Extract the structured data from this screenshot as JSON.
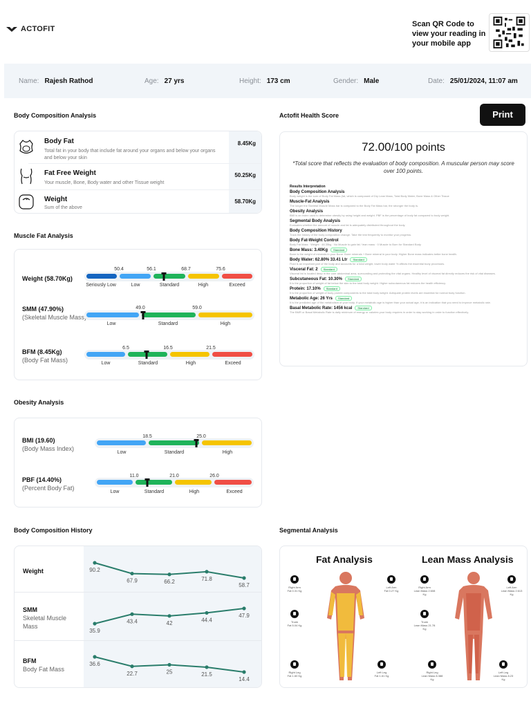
{
  "header": {
    "logo_text": "ACTOFIT",
    "qr_text": "Scan QR Code to view your reading in your mobile app"
  },
  "info": {
    "name_label": "Name:",
    "name": "Rajesh Rathod",
    "age_label": "Age:",
    "age": "27 yrs",
    "height_label": "Height:",
    "height": "173 cm",
    "gender_label": "Gender:",
    "gender": "Male",
    "date_label": "Date:",
    "date": "25/01/2024, 11:07 am"
  },
  "body_composition": {
    "title": "Body Composition Analysis",
    "rows": [
      {
        "name": "Body Fat",
        "desc": "Total fat in your body that include fat around your organs and below your organs and below your skin",
        "value": "8.45Kg",
        "icon": "body-fat-icon"
      },
      {
        "name": "Fat Free Weight",
        "desc": "Your muscle, Bone, Body water and other Tissue weight",
        "value": "50.25Kg",
        "icon": "torso-icon"
      },
      {
        "name": "Weight",
        "desc": "Sum of the above",
        "value": "58.70Kg",
        "icon": "scale-icon"
      }
    ]
  },
  "muscle_fat": {
    "title": "Muscle Fat Analysis",
    "weight": {
      "label": "Weight (58.70Kg)",
      "ticks": [
        "50.4",
        "56.1",
        "68.7",
        "75.6"
      ],
      "cats": [
        "Seriously Low",
        "Low",
        "Standard",
        "High",
        "Exceed"
      ],
      "value": 58.7
    },
    "smm": {
      "label": "SMM (47.90%)",
      "sub": "(Skeletal Muscle Mass)",
      "ticks": [
        "49.0",
        "59.0"
      ],
      "cats": [
        "Low",
        "Standard",
        "High"
      ],
      "value": 47.9
    },
    "bfm": {
      "label": "BFM (8.45Kg)",
      "sub": "(Body Fat Mass)",
      "ticks": [
        "6.5",
        "16.5",
        "21.5"
      ],
      "cats": [
        "Low",
        "Standard",
        "High",
        "Exceed"
      ],
      "value": 8.45
    }
  },
  "obesity": {
    "title": "Obesity Analysis",
    "bmi": {
      "label": "BMI (19.60)",
      "sub": "(Body Mass Index)",
      "ticks": [
        "18.5",
        "25.0"
      ],
      "cats": [
        "Low",
        "Standard",
        "High"
      ],
      "value": 19.6
    },
    "pbf": {
      "label": "PBF (14.40%)",
      "sub": "(Percent Body Fat)",
      "ticks": [
        "11.0",
        "21.0",
        "26.0"
      ],
      "cats": [
        "Low",
        "Standard",
        "High",
        "Exceed"
      ],
      "value": 14.4
    }
  },
  "health_score": {
    "title": "Actofit Health Score",
    "print_label": "Print",
    "score": "72.00",
    "score_suffix": "/100 points",
    "note": "*Total score that reflects the evaluation of body composition. A muscular person may score over 100 points.",
    "interp_title": "Results Interpretation",
    "items": [
      {
        "h": "Body Composition Analysis",
        "p": "Body weight is the sum of Body Fat Mass (fat, which is composed of Dry Lean Mass, Total Body Water, Bone Mass & Other Tissue"
      },
      {
        "h": "Muscle-Fat Analysis",
        "p": "The longer the Skeletal Muscle Mass bar is compared to the Body Fat Mass bar, the stronger the body is."
      },
      {
        "h": "Obesity Analysis",
        "p": "BMI is an index used to determine obesity by using height and weight. PBF is the percentage of body fat compared to body weight."
      },
      {
        "h": "Segmental Body Analysis",
        "p": "Evaluates whether the amount of muscle and fat is adequately distributed throughout the body."
      },
      {
        "h": "Body Composition History",
        "p": "Track the history of the body composition change. Take the test frequently to monitor your progress."
      },
      {
        "h": "Body Fat-Weight Control",
        "p": "Body Fat Mass · Weight · 48.35kg · No Muscle to gain fat / lean mass · 0 Muscle to Burn for Standard Body"
      }
    ],
    "metrics": [
      {
        "k": "Bone Mass: 3.40Kg",
        "badge": "Standard",
        "p": "Bone is the weight of minerals in your Bone. Bone minerals + Bone mineral in your body. Higher Bone mass indicates better bone health."
      },
      {
        "k": "Body Water: 62.80% 33.41 Ltr",
        "badge": "Standard",
        "p": "Fluid is an important part of the body and accounts for a total weight, lower body water % affects the essential body processes."
      },
      {
        "k": "Visceral Fat: 2",
        "badge": "Standard",
        "p": "Visceral fat is located deep in the core abdominal area, surrounding and protecting the vital organs. Healthy level of visceral fat directly reduces the risk of vital diseases."
      },
      {
        "k": "Subcutaneous Fat: 10.30%",
        "badge": "Standard",
        "p": "It is the proportion of weight of fat below the skin to the total body weight. Higher subcutaneous fat reduces the health efficiency."
      },
      {
        "k": "Protein: 17.10%",
        "badge": "Standard",
        "p": "It is the proportion of weight of body protein components to the total body weight. Adequate protein levels are essential for normal body function."
      },
      {
        "k": "Metabolic Age: 26 Yrs",
        "badge": "Standard",
        "p": "It is the predicted age of the metabolism of your body. If your metabolic age is higher than your actual age, it is an indication that you need to improve metabolic rate."
      },
      {
        "k": "Basal Metabolic Rate: 1456 kcal",
        "badge": "Standard",
        "p": "The BMR or Basal Metabolic Rate is daily minimum of energy or calories your body requires in order to stay working in order to function effectively."
      }
    ]
  },
  "history": {
    "title": "Body Composition History",
    "rows": [
      {
        "label": "Weight",
        "sub": ""
      },
      {
        "label": "SMM",
        "sub": "Skeletal Muscle Mass"
      },
      {
        "label": "BFM",
        "sub": "Body Fat Mass"
      }
    ]
  },
  "chart_data": {
    "type": "line",
    "title": "Body Composition History",
    "x": [
      "1",
      "2",
      "3",
      "4",
      "5"
    ],
    "series": [
      {
        "name": "Weight",
        "values": [
          90.2,
          67.9,
          66.2,
          71.8,
          58.7
        ]
      },
      {
        "name": "SMM",
        "values": [
          35.9,
          43.4,
          42,
          44.4,
          47.9
        ]
      },
      {
        "name": "BFM",
        "values": [
          36.6,
          22.7,
          25,
          21.5,
          14.4
        ]
      }
    ],
    "color": "#2a7d6b"
  },
  "segmental": {
    "title": "Segmental Analysis",
    "fat_title": "Fat Analysis",
    "lean_title": "Lean Mass Analysis",
    "fat": {
      "right_arm": "Right Arm\nFat 0.31 Kg",
      "left_arm": "Left Arm\nFat 0.27 Kg",
      "trunk": "Trunk\nFat 5.04 Kg",
      "right_leg": "Right Leg\nFat 1.60 Kg",
      "left_leg": "Left Leg\nFat 1.61 Kg"
    },
    "lean": {
      "right_arm": "Right Arm\nLean Mass 2.608 Kg",
      "left_arm": "Left Arm\nLean Mass 2.613 Kg",
      "trunk": "Trunk\nLean Mass 21.78 Kg",
      "right_leg": "Right Leg\nLean Mass 8.388 Kg",
      "left_leg": "Left Leg\nLean Mass 8.23 Kg"
    }
  }
}
